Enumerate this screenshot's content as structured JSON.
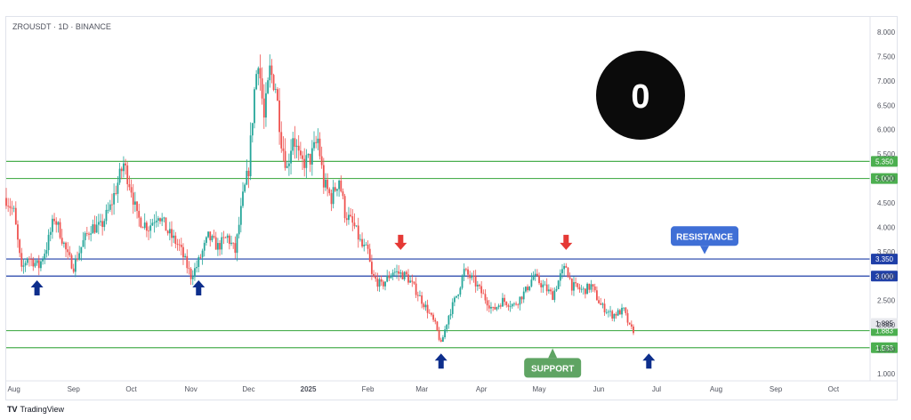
{
  "header": {
    "symbol_title": "ZROUSDT · 1D · BINANCE"
  },
  "footer": {
    "brand": "TradingView",
    "brand_mark": "TV"
  },
  "logo": {
    "icon": "layerzero-logo-icon",
    "glyph": "0"
  },
  "colors": {
    "up_candle": "#26a69a",
    "down_candle": "#ef5350",
    "support_line": "#4caf50",
    "resistance_line": "#1f3fa8",
    "support_label_bg": "#5fa463",
    "resistance_label_bg": "#3f6fd6",
    "up_arrow": "#0d2e8c",
    "down_arrow": "#e53935"
  },
  "annotations": {
    "resistance_label": "RESISTANCE",
    "support_label": "SUPPORT"
  },
  "chart_data": {
    "type": "candlestick",
    "title": "ZROUSDT · 1D · BINANCE",
    "xlabel": "",
    "ylabel": "",
    "x_range": [
      "2024-07-28",
      "2025-10-20"
    ],
    "ylim": [
      0.8,
      8.2
    ],
    "y_ticks": [
      "1.000",
      "1.500",
      "2.000",
      "2.500",
      "3.000",
      "3.500",
      "4.000",
      "4.500",
      "5.000",
      "5.500",
      "6.000",
      "6.500",
      "7.000",
      "7.500",
      "8.000"
    ],
    "x_ticks": [
      {
        "date": "2024-08-01",
        "label": "Aug"
      },
      {
        "date": "2024-09-01",
        "label": "Sep"
      },
      {
        "date": "2024-10-01",
        "label": "Oct"
      },
      {
        "date": "2024-11-01",
        "label": "Nov"
      },
      {
        "date": "2024-12-01",
        "label": "Dec"
      },
      {
        "date": "2025-01-01",
        "label": "2025"
      },
      {
        "date": "2025-02-01",
        "label": "Feb"
      },
      {
        "date": "2025-03-01",
        "label": "Mar"
      },
      {
        "date": "2025-04-01",
        "label": "Apr"
      },
      {
        "date": "2025-05-01",
        "label": "May"
      },
      {
        "date": "2025-06-01",
        "label": "Jun"
      },
      {
        "date": "2025-07-01",
        "label": "Jul"
      },
      {
        "date": "2025-08-01",
        "label": "Aug"
      },
      {
        "date": "2025-09-01",
        "label": "Sep"
      },
      {
        "date": "2025-10-01",
        "label": "Oct"
      }
    ],
    "close_path": [
      [
        "2024-07-28",
        4.6
      ],
      [
        "2024-08-01",
        4.3
      ],
      [
        "2024-08-05",
        3.1
      ],
      [
        "2024-08-08",
        3.4
      ],
      [
        "2024-08-14",
        3.2
      ],
      [
        "2024-08-18",
        3.6
      ],
      [
        "2024-08-22",
        4.2
      ],
      [
        "2024-08-25",
        3.9
      ],
      [
        "2024-08-29",
        3.4
      ],
      [
        "2024-09-01",
        3.2
      ],
      [
        "2024-09-06",
        3.7
      ],
      [
        "2024-09-10",
        4.0
      ],
      [
        "2024-09-15",
        4.0
      ],
      [
        "2024-09-20",
        4.4
      ],
      [
        "2024-09-27",
        5.3
      ],
      [
        "2024-10-01",
        4.8
      ],
      [
        "2024-10-04",
        4.2
      ],
      [
        "2024-10-10",
        4.0
      ],
      [
        "2024-10-15",
        4.3
      ],
      [
        "2024-10-20",
        3.9
      ],
      [
        "2024-10-26",
        3.6
      ],
      [
        "2024-11-01",
        3.0
      ],
      [
        "2024-11-04",
        3.2
      ],
      [
        "2024-11-10",
        3.8
      ],
      [
        "2024-11-15",
        3.6
      ],
      [
        "2024-11-20",
        3.8
      ],
      [
        "2024-11-24",
        3.5
      ],
      [
        "2024-11-28",
        4.6
      ],
      [
        "2024-12-01",
        5.2
      ],
      [
        "2024-12-04",
        6.8
      ],
      [
        "2024-12-06",
        7.5
      ],
      [
        "2024-12-09",
        6.2
      ],
      [
        "2024-12-12",
        7.2
      ],
      [
        "2024-12-15",
        6.9
      ],
      [
        "2024-12-18",
        5.8
      ],
      [
        "2024-12-21",
        5.2
      ],
      [
        "2024-12-24",
        5.9
      ],
      [
        "2024-12-28",
        5.3
      ],
      [
        "2025-01-02",
        5.4
      ],
      [
        "2025-01-06",
        5.8
      ],
      [
        "2025-01-09",
        4.9
      ],
      [
        "2025-01-13",
        4.6
      ],
      [
        "2025-01-17",
        5.0
      ],
      [
        "2025-01-20",
        4.3
      ],
      [
        "2025-01-25",
        4.0
      ],
      [
        "2025-01-29",
        3.6
      ],
      [
        "2025-02-01",
        3.5
      ],
      [
        "2025-02-03",
        3.0
      ],
      [
        "2025-02-08",
        2.8
      ],
      [
        "2025-02-14",
        3.1
      ],
      [
        "2025-02-21",
        3.0
      ],
      [
        "2025-02-26",
        2.7
      ],
      [
        "2025-03-04",
        2.3
      ],
      [
        "2025-03-08",
        2.0
      ],
      [
        "2025-03-11",
        1.6
      ],
      [
        "2025-03-15",
        2.2
      ],
      [
        "2025-03-20",
        2.7
      ],
      [
        "2025-03-23",
        3.1
      ],
      [
        "2025-03-28",
        2.9
      ],
      [
        "2025-04-02",
        2.6
      ],
      [
        "2025-04-07",
        2.3
      ],
      [
        "2025-04-12",
        2.5
      ],
      [
        "2025-04-18",
        2.4
      ],
      [
        "2025-04-24",
        2.7
      ],
      [
        "2025-04-28",
        3.0
      ],
      [
        "2025-05-03",
        2.8
      ],
      [
        "2025-05-08",
        2.6
      ],
      [
        "2025-05-12",
        3.0
      ],
      [
        "2025-05-15",
        3.2
      ],
      [
        "2025-05-18",
        2.8
      ],
      [
        "2025-05-24",
        2.7
      ],
      [
        "2025-05-28",
        2.8
      ],
      [
        "2025-06-02",
        2.4
      ],
      [
        "2025-06-08",
        2.2
      ],
      [
        "2025-06-14",
        2.3
      ],
      [
        "2025-06-17",
        1.95
      ],
      [
        "2025-06-19",
        1.885
      ]
    ],
    "horizontal_levels": [
      {
        "value": 5.35,
        "label": "5.350",
        "kind": "resistance-upper",
        "color": "#4caf50"
      },
      {
        "value": 5.0,
        "label": "5.000",
        "kind": "resistance-upper",
        "color": "#4caf50"
      },
      {
        "value": 3.35,
        "label": "3.350",
        "kind": "resistance",
        "color": "#1f3fa8"
      },
      {
        "value": 3.0,
        "label": "3.000",
        "kind": "resistance",
        "color": "#1f3fa8"
      },
      {
        "value": 1.883,
        "label": "1.883",
        "kind": "support",
        "color": "#4caf50"
      },
      {
        "value": 1.533,
        "label": "1.533",
        "kind": "support",
        "color": "#4caf50"
      }
    ],
    "last_price": {
      "value": 1.885,
      "label": "1.885"
    },
    "markers": [
      {
        "date": "2024-08-13",
        "y": 2.75,
        "direction": "up"
      },
      {
        "date": "2024-11-05",
        "y": 2.75,
        "direction": "up"
      },
      {
        "date": "2025-03-11",
        "y": 1.25,
        "direction": "up"
      },
      {
        "date": "2025-06-27",
        "y": 1.25,
        "direction": "up"
      },
      {
        "date": "2025-02-18",
        "y": 3.7,
        "direction": "down"
      },
      {
        "date": "2025-05-15",
        "y": 3.7,
        "direction": "down"
      }
    ],
    "callouts": [
      {
        "text": "RESISTANCE",
        "date": "2025-07-26",
        "y": 3.82,
        "pointer_y": 3.45
      },
      {
        "text": "SUPPORT",
        "date": "2025-05-08",
        "y": 1.12,
        "pointer_y": 1.52
      }
    ]
  }
}
